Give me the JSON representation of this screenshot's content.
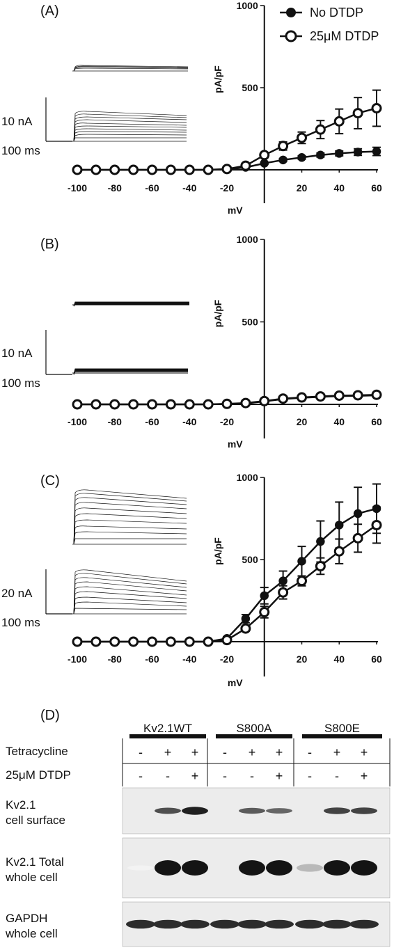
{
  "chart_data": [
    {
      "panel": "(A)",
      "type": "line",
      "xlabel": "mV",
      "ylabel": "pA/pF",
      "xlim": [
        -100,
        60
      ],
      "ylim": [
        0,
        1000
      ],
      "x_ticks": [
        "-100",
        "-80",
        "-60",
        "-40",
        "-20",
        "20",
        "40",
        "60"
      ],
      "y_ticks": [
        "1000",
        "500"
      ],
      "scale_current": "10 nA",
      "scale_time": "100 ms",
      "legend_position": "top-right",
      "x": [
        -100,
        -90,
        -80,
        -70,
        -60,
        -50,
        -40,
        -30,
        -20,
        -10,
        0,
        10,
        20,
        30,
        40,
        50,
        60
      ],
      "series": [
        {
          "name": "No DTDP",
          "marker": "filled-circle",
          "values": [
            0,
            0,
            0,
            0,
            0,
            0,
            0,
            0,
            2,
            15,
            40,
            60,
            75,
            90,
            100,
            108,
            112
          ],
          "errors": [
            0,
            0,
            0,
            0,
            0,
            0,
            0,
            0,
            0,
            4,
            6,
            8,
            10,
            12,
            15,
            20,
            25
          ]
        },
        {
          "name": "25μM DTDP",
          "marker": "open-circle",
          "values": [
            0,
            0,
            0,
            0,
            0,
            0,
            0,
            0,
            5,
            25,
            90,
            145,
            195,
            245,
            295,
            345,
            375
          ],
          "errors": [
            0,
            0,
            0,
            0,
            0,
            0,
            0,
            0,
            2,
            8,
            15,
            25,
            35,
            55,
            75,
            95,
            110
          ]
        }
      ]
    },
    {
      "panel": "(B)",
      "type": "line",
      "xlabel": "mV",
      "ylabel": "pA/pF",
      "xlim": [
        -100,
        60
      ],
      "ylim": [
        0,
        1000
      ],
      "x_ticks": [
        "-100",
        "-80",
        "-60",
        "-40",
        "-20",
        "20",
        "40",
        "60"
      ],
      "y_ticks": [
        "1000",
        "500"
      ],
      "scale_current": "10 nA",
      "scale_time": "100 ms",
      "x": [
        -100,
        -90,
        -80,
        -70,
        -60,
        -50,
        -40,
        -30,
        -20,
        -10,
        0,
        10,
        20,
        30,
        40,
        50,
        60
      ],
      "series": [
        {
          "marker": "filled-circle",
          "values": [
            0,
            0,
            0,
            0,
            0,
            0,
            0,
            0,
            2,
            6,
            18,
            32,
            40,
            45,
            50,
            52,
            55
          ],
          "errors": [
            0,
            0,
            0,
            0,
            0,
            0,
            0,
            0,
            0,
            0,
            0,
            0,
            0,
            0,
            0,
            0,
            0
          ]
        },
        {
          "marker": "open-circle",
          "values": [
            0,
            0,
            0,
            0,
            0,
            0,
            0,
            0,
            3,
            8,
            20,
            35,
            42,
            48,
            53,
            55,
            58
          ],
          "errors": [
            0,
            0,
            0,
            0,
            0,
            0,
            0,
            0,
            0,
            0,
            0,
            0,
            0,
            0,
            0,
            0,
            0
          ]
        }
      ]
    },
    {
      "panel": "(C)",
      "type": "line",
      "xlabel": "mV",
      "ylabel": "pA/pF",
      "xlim": [
        -100,
        60
      ],
      "ylim": [
        0,
        1000
      ],
      "x_ticks": [
        "-100",
        "-80",
        "-60",
        "-40",
        "-20",
        "20",
        "40",
        "60"
      ],
      "y_ticks": [
        "1000",
        "500"
      ],
      "scale_current": "20 nA",
      "scale_time": "100 ms",
      "x": [
        -100,
        -90,
        -80,
        -70,
        -60,
        -50,
        -40,
        -30,
        -20,
        -10,
        0,
        10,
        20,
        30,
        40,
        50,
        60
      ],
      "series": [
        {
          "marker": "filled-circle",
          "values": [
            0,
            0,
            0,
            0,
            0,
            0,
            0,
            0,
            20,
            140,
            280,
            370,
            490,
            610,
            710,
            780,
            810
          ],
          "errors": [
            0,
            0,
            0,
            0,
            0,
            0,
            0,
            0,
            10,
            25,
            50,
            60,
            90,
            125,
            140,
            160,
            150
          ]
        },
        {
          "marker": "open-circle",
          "values": [
            0,
            0,
            0,
            0,
            0,
            0,
            0,
            0,
            10,
            80,
            180,
            300,
            370,
            460,
            550,
            630,
            710
          ],
          "errors": [
            0,
            0,
            0,
            0,
            0,
            0,
            0,
            0,
            5,
            15,
            35,
            40,
            30,
            50,
            75,
            85,
            110
          ]
        }
      ]
    }
  ],
  "western": {
    "panel": "(D)",
    "groups": [
      "Kv2.1WT",
      "S800A",
      "S800E"
    ],
    "row_labels": [
      "Tetracycline",
      "25μM DTDP"
    ],
    "tetracycline": [
      "-",
      "+",
      "+",
      "-",
      "+",
      "+",
      "-",
      "+",
      "+"
    ],
    "dtdp": [
      "-",
      "-",
      "+",
      "-",
      "-",
      "+",
      "-",
      "-",
      "+"
    ],
    "blots": [
      {
        "line1": "Kv2.1",
        "line2": "cell surface",
        "intensities": [
          0,
          0.75,
          0.95,
          0,
          0.7,
          0.65,
          0,
          0.8,
          0.8
        ]
      },
      {
        "line1": "Kv2.1 Total",
        "line2": "whole cell",
        "intensities": [
          0.05,
          1,
          1,
          0,
          1,
          1,
          0.3,
          1,
          1
        ]
      },
      {
        "line1": "GAPDH",
        "line2": "whole cell",
        "intensities": [
          0.9,
          0.9,
          0.9,
          0.9,
          0.9,
          0.9,
          0.9,
          0.9,
          0.9
        ]
      }
    ]
  }
}
